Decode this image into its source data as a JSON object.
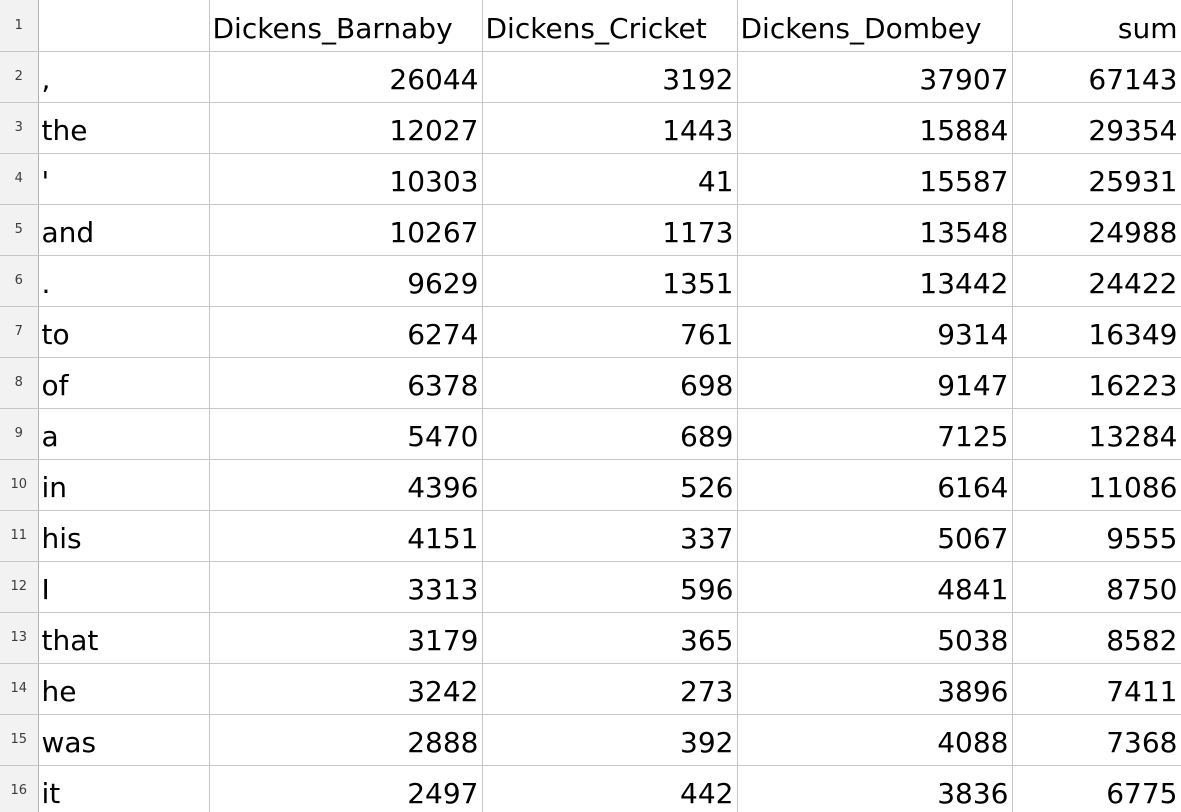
{
  "header": {
    "row_number": "1",
    "col_a": "",
    "col_b": "Dickens_Barnaby",
    "col_c": "Dickens_Cricket",
    "col_d": "Dickens_Dombey",
    "col_e": "sum"
  },
  "rows": [
    {
      "row_number": "2",
      "word": ",",
      "barnaby": "26044",
      "cricket": "3192",
      "dombey": "37907",
      "sum": "67143"
    },
    {
      "row_number": "3",
      "word": "the",
      "barnaby": "12027",
      "cricket": "1443",
      "dombey": "15884",
      "sum": "29354"
    },
    {
      "row_number": "4",
      "word": "'",
      "barnaby": "10303",
      "cricket": "41",
      "dombey": "15587",
      "sum": "25931"
    },
    {
      "row_number": "5",
      "word": "and",
      "barnaby": "10267",
      "cricket": "1173",
      "dombey": "13548",
      "sum": "24988"
    },
    {
      "row_number": "6",
      "word": ".",
      "barnaby": "9629",
      "cricket": "1351",
      "dombey": "13442",
      "sum": "24422"
    },
    {
      "row_number": "7",
      "word": "to",
      "barnaby": "6274",
      "cricket": "761",
      "dombey": "9314",
      "sum": "16349"
    },
    {
      "row_number": "8",
      "word": "of",
      "barnaby": "6378",
      "cricket": "698",
      "dombey": "9147",
      "sum": "16223"
    },
    {
      "row_number": "9",
      "word": "a",
      "barnaby": "5470",
      "cricket": "689",
      "dombey": "7125",
      "sum": "13284"
    },
    {
      "row_number": "10",
      "word": "in",
      "barnaby": "4396",
      "cricket": "526",
      "dombey": "6164",
      "sum": "11086"
    },
    {
      "row_number": "11",
      "word": "his",
      "barnaby": "4151",
      "cricket": "337",
      "dombey": "5067",
      "sum": "9555"
    },
    {
      "row_number": "12",
      "word": "I",
      "barnaby": "3313",
      "cricket": "596",
      "dombey": "4841",
      "sum": "8750"
    },
    {
      "row_number": "13",
      "word": "that",
      "barnaby": "3179",
      "cricket": "365",
      "dombey": "5038",
      "sum": "8582"
    },
    {
      "row_number": "14",
      "word": "he",
      "barnaby": "3242",
      "cricket": "273",
      "dombey": "3896",
      "sum": "7411"
    },
    {
      "row_number": "15",
      "word": "was",
      "barnaby": "2888",
      "cricket": "392",
      "dombey": "4088",
      "sum": "7368"
    },
    {
      "row_number": "16",
      "word": "it",
      "barnaby": "2497",
      "cricket": "442",
      "dombey": "3836",
      "sum": "6775"
    }
  ]
}
